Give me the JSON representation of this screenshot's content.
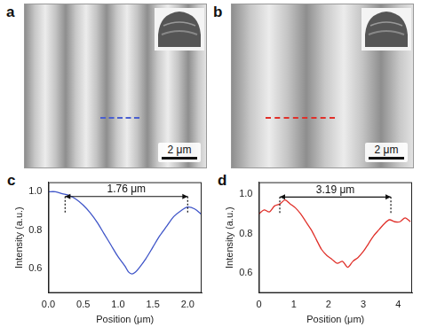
{
  "images": [
    {
      "panel": "a",
      "scale_bar": "2 μm",
      "color": "#4a5fd0"
    },
    {
      "panel": "b",
      "scale_bar": "2 μm",
      "color": "#e0302a"
    }
  ],
  "chart_data": [
    {
      "type": "line",
      "panel": "c",
      "x_label": "Position (μm)",
      "y_label": "Intensity (a.u.)",
      "color": "#3f55c8",
      "x": [
        0.0,
        0.1,
        0.2,
        0.3,
        0.4,
        0.5,
        0.6,
        0.7,
        0.8,
        0.9,
        1.0,
        1.1,
        1.15,
        1.2,
        1.25,
        1.3,
        1.4,
        1.5,
        1.6,
        1.7,
        1.8,
        1.9,
        2.0,
        2.1,
        2.2
      ],
      "values": [
        1.0,
        1.0,
        0.99,
        0.98,
        0.96,
        0.93,
        0.89,
        0.84,
        0.78,
        0.72,
        0.66,
        0.61,
        0.58,
        0.57,
        0.58,
        0.6,
        0.65,
        0.71,
        0.77,
        0.82,
        0.87,
        0.9,
        0.92,
        0.91,
        0.88
      ],
      "xlim": [
        0,
        2.2
      ],
      "ylim": [
        0.47,
        1.05
      ],
      "xticks": [
        {
          "value": 0,
          "label": "0.0"
        },
        0.5,
        {
          "value": 1,
          "label": "1.0"
        },
        1.5,
        {
          "value": 2,
          "label": "2.0"
        }
      ],
      "yticks": [
        0.6,
        0.8,
        {
          "value": 1,
          "label": "1.0"
        }
      ],
      "annotations": [
        {
          "text": "1.76 μm",
          "x_start": 0.24,
          "x_end": 2.0,
          "y": 0.975
        }
      ]
    },
    {
      "type": "line",
      "panel": "d",
      "x_label": "Position (μm)",
      "y_label": "Intensity (a.u.)",
      "color": "#e0302a",
      "x": [
        0.0,
        0.15,
        0.3,
        0.45,
        0.6,
        0.75,
        0.9,
        1.05,
        1.2,
        1.35,
        1.5,
        1.65,
        1.8,
        1.95,
        2.1,
        2.25,
        2.4,
        2.55,
        2.7,
        2.85,
        3.0,
        3.15,
        3.3,
        3.45,
        3.6,
        3.75,
        3.9,
        4.05,
        4.2,
        4.35
      ],
      "values": [
        0.9,
        0.92,
        0.91,
        0.94,
        0.95,
        0.97,
        0.95,
        0.93,
        0.9,
        0.86,
        0.82,
        0.77,
        0.72,
        0.69,
        0.67,
        0.65,
        0.66,
        0.63,
        0.66,
        0.68,
        0.71,
        0.75,
        0.79,
        0.82,
        0.85,
        0.87,
        0.86,
        0.86,
        0.88,
        0.86
      ],
      "xlim": [
        0,
        4.4
      ],
      "ylim": [
        0.5,
        1.06
      ],
      "xticks": [
        0,
        1,
        2,
        3,
        4
      ],
      "yticks": [
        0.6,
        0.8,
        {
          "value": 1,
          "label": "1.0"
        }
      ],
      "annotations": [
        {
          "text": "3.19 μm",
          "x_start": 0.6,
          "x_end": 3.79,
          "y": 0.985
        }
      ]
    }
  ]
}
